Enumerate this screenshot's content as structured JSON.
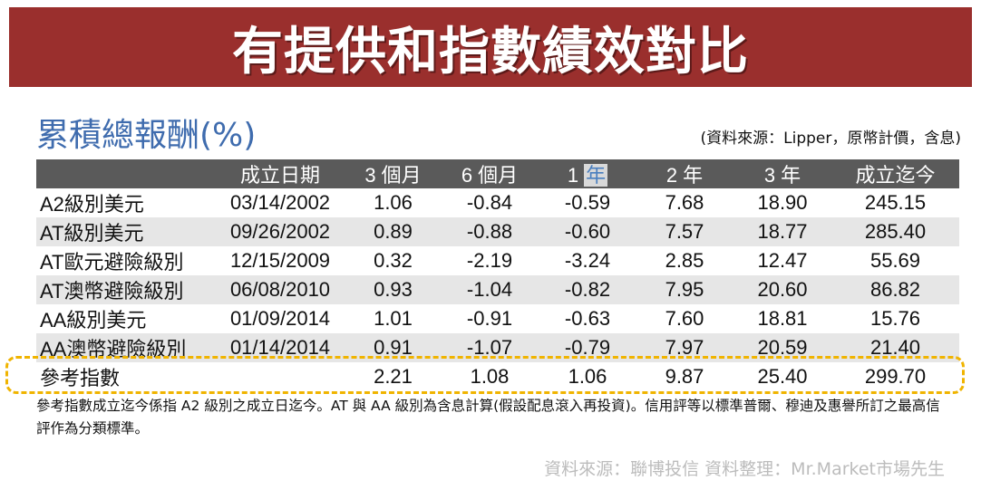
{
  "banner": {
    "title": "有提供和指數績效對比"
  },
  "subtitle": "累積總報酬(%)",
  "source_note": "(資料來源：Lipper，原幣計價，含息)",
  "table": {
    "headers": [
      "",
      "成立日期",
      "3 個月",
      "6 個月",
      "1 ",
      "2 年",
      "3 年",
      "成立迄今"
    ],
    "header_year_highlight": "年",
    "rows": [
      [
        "A2級別美元",
        "03/14/2002",
        "1.06",
        "-0.84",
        "-0.59",
        "7.68",
        "18.90",
        "245.15"
      ],
      [
        "AT級別美元",
        "09/26/2002",
        "0.89",
        "-0.88",
        "-0.60",
        "7.57",
        "18.77",
        "285.40"
      ],
      [
        "AT歐元避險級別",
        "12/15/2009",
        "0.32",
        "-2.19",
        "-3.24",
        "2.85",
        "12.47",
        "55.69"
      ],
      [
        "AT澳幣避險級別",
        "06/08/2010",
        "0.93",
        "-1.04",
        "-0.82",
        "7.95",
        "20.60",
        "86.82"
      ],
      [
        "AA級別美元",
        "01/09/2014",
        "1.01",
        "-0.91",
        "-0.63",
        "7.60",
        "18.81",
        "15.76"
      ],
      [
        "AA澳幣避險級別",
        "01/14/2014",
        "0.91",
        "-1.07",
        "-0.79",
        "7.97",
        "20.59",
        "21.40"
      ],
      [
        "參考指數",
        "",
        "2.21",
        "1.08",
        "1.06",
        "9.87",
        "25.40",
        "299.70"
      ]
    ]
  },
  "footnote": "參考指數成立迄今係指 A2 級別之成立日迄今。AT 與 AA 級別為含息計算(假設配息滾入再投資)。信用評等以標準普爾、穆迪及惠譽所訂之最高信評作為分類標準。",
  "source_bottom": "資料來源：聯博投信 資料整理：Mr.Market市場先生"
}
